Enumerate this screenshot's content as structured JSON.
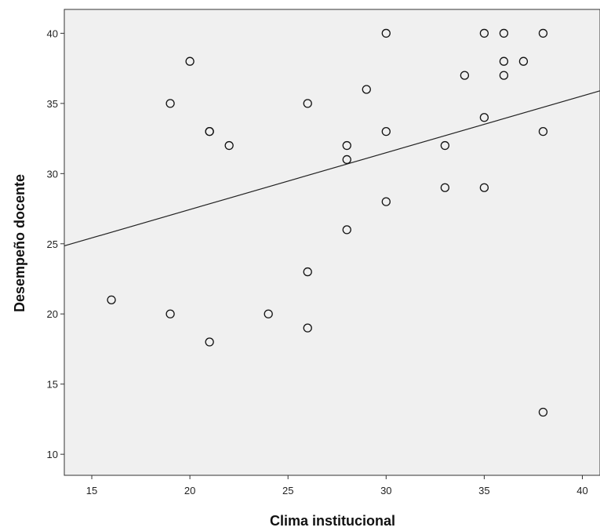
{
  "chart_data": {
    "type": "scatter",
    "title": "",
    "xlabel": "Clima institucional",
    "ylabel": "Desempeño docente",
    "xlim": [
      13.6,
      40.9
    ],
    "ylim": [
      8.5,
      41.7
    ],
    "xticks": [
      15,
      20,
      25,
      30,
      35,
      40
    ],
    "yticks": [
      10,
      15,
      20,
      25,
      30,
      35,
      40
    ],
    "grid": false,
    "background_color": "#f0f0f0",
    "marker_color": "#111111",
    "points": [
      {
        "x": 16,
        "y": 21
      },
      {
        "x": 19,
        "y": 35
      },
      {
        "x": 19,
        "y": 20
      },
      {
        "x": 20,
        "y": 38
      },
      {
        "x": 21,
        "y": 33
      },
      {
        "x": 21,
        "y": 33
      },
      {
        "x": 21,
        "y": 18
      },
      {
        "x": 22,
        "y": 32
      },
      {
        "x": 24,
        "y": 20
      },
      {
        "x": 26,
        "y": 35
      },
      {
        "x": 26,
        "y": 23
      },
      {
        "x": 26,
        "y": 19
      },
      {
        "x": 28,
        "y": 32
      },
      {
        "x": 28,
        "y": 31
      },
      {
        "x": 28,
        "y": 26
      },
      {
        "x": 29,
        "y": 36
      },
      {
        "x": 30,
        "y": 40
      },
      {
        "x": 30,
        "y": 33
      },
      {
        "x": 30,
        "y": 28
      },
      {
        "x": 33,
        "y": 32
      },
      {
        "x": 33,
        "y": 29
      },
      {
        "x": 34,
        "y": 37
      },
      {
        "x": 35,
        "y": 40
      },
      {
        "x": 35,
        "y": 34
      },
      {
        "x": 35,
        "y": 29
      },
      {
        "x": 36,
        "y": 40
      },
      {
        "x": 36,
        "y": 38
      },
      {
        "x": 36,
        "y": 37
      },
      {
        "x": 37,
        "y": 38
      },
      {
        "x": 38,
        "y": 40
      },
      {
        "x": 38,
        "y": 33
      },
      {
        "x": 38,
        "y": 13
      }
    ],
    "fit_line": {
      "x": [
        13.6,
        40.9
      ],
      "y": [
        24.85,
        35.9
      ]
    }
  }
}
